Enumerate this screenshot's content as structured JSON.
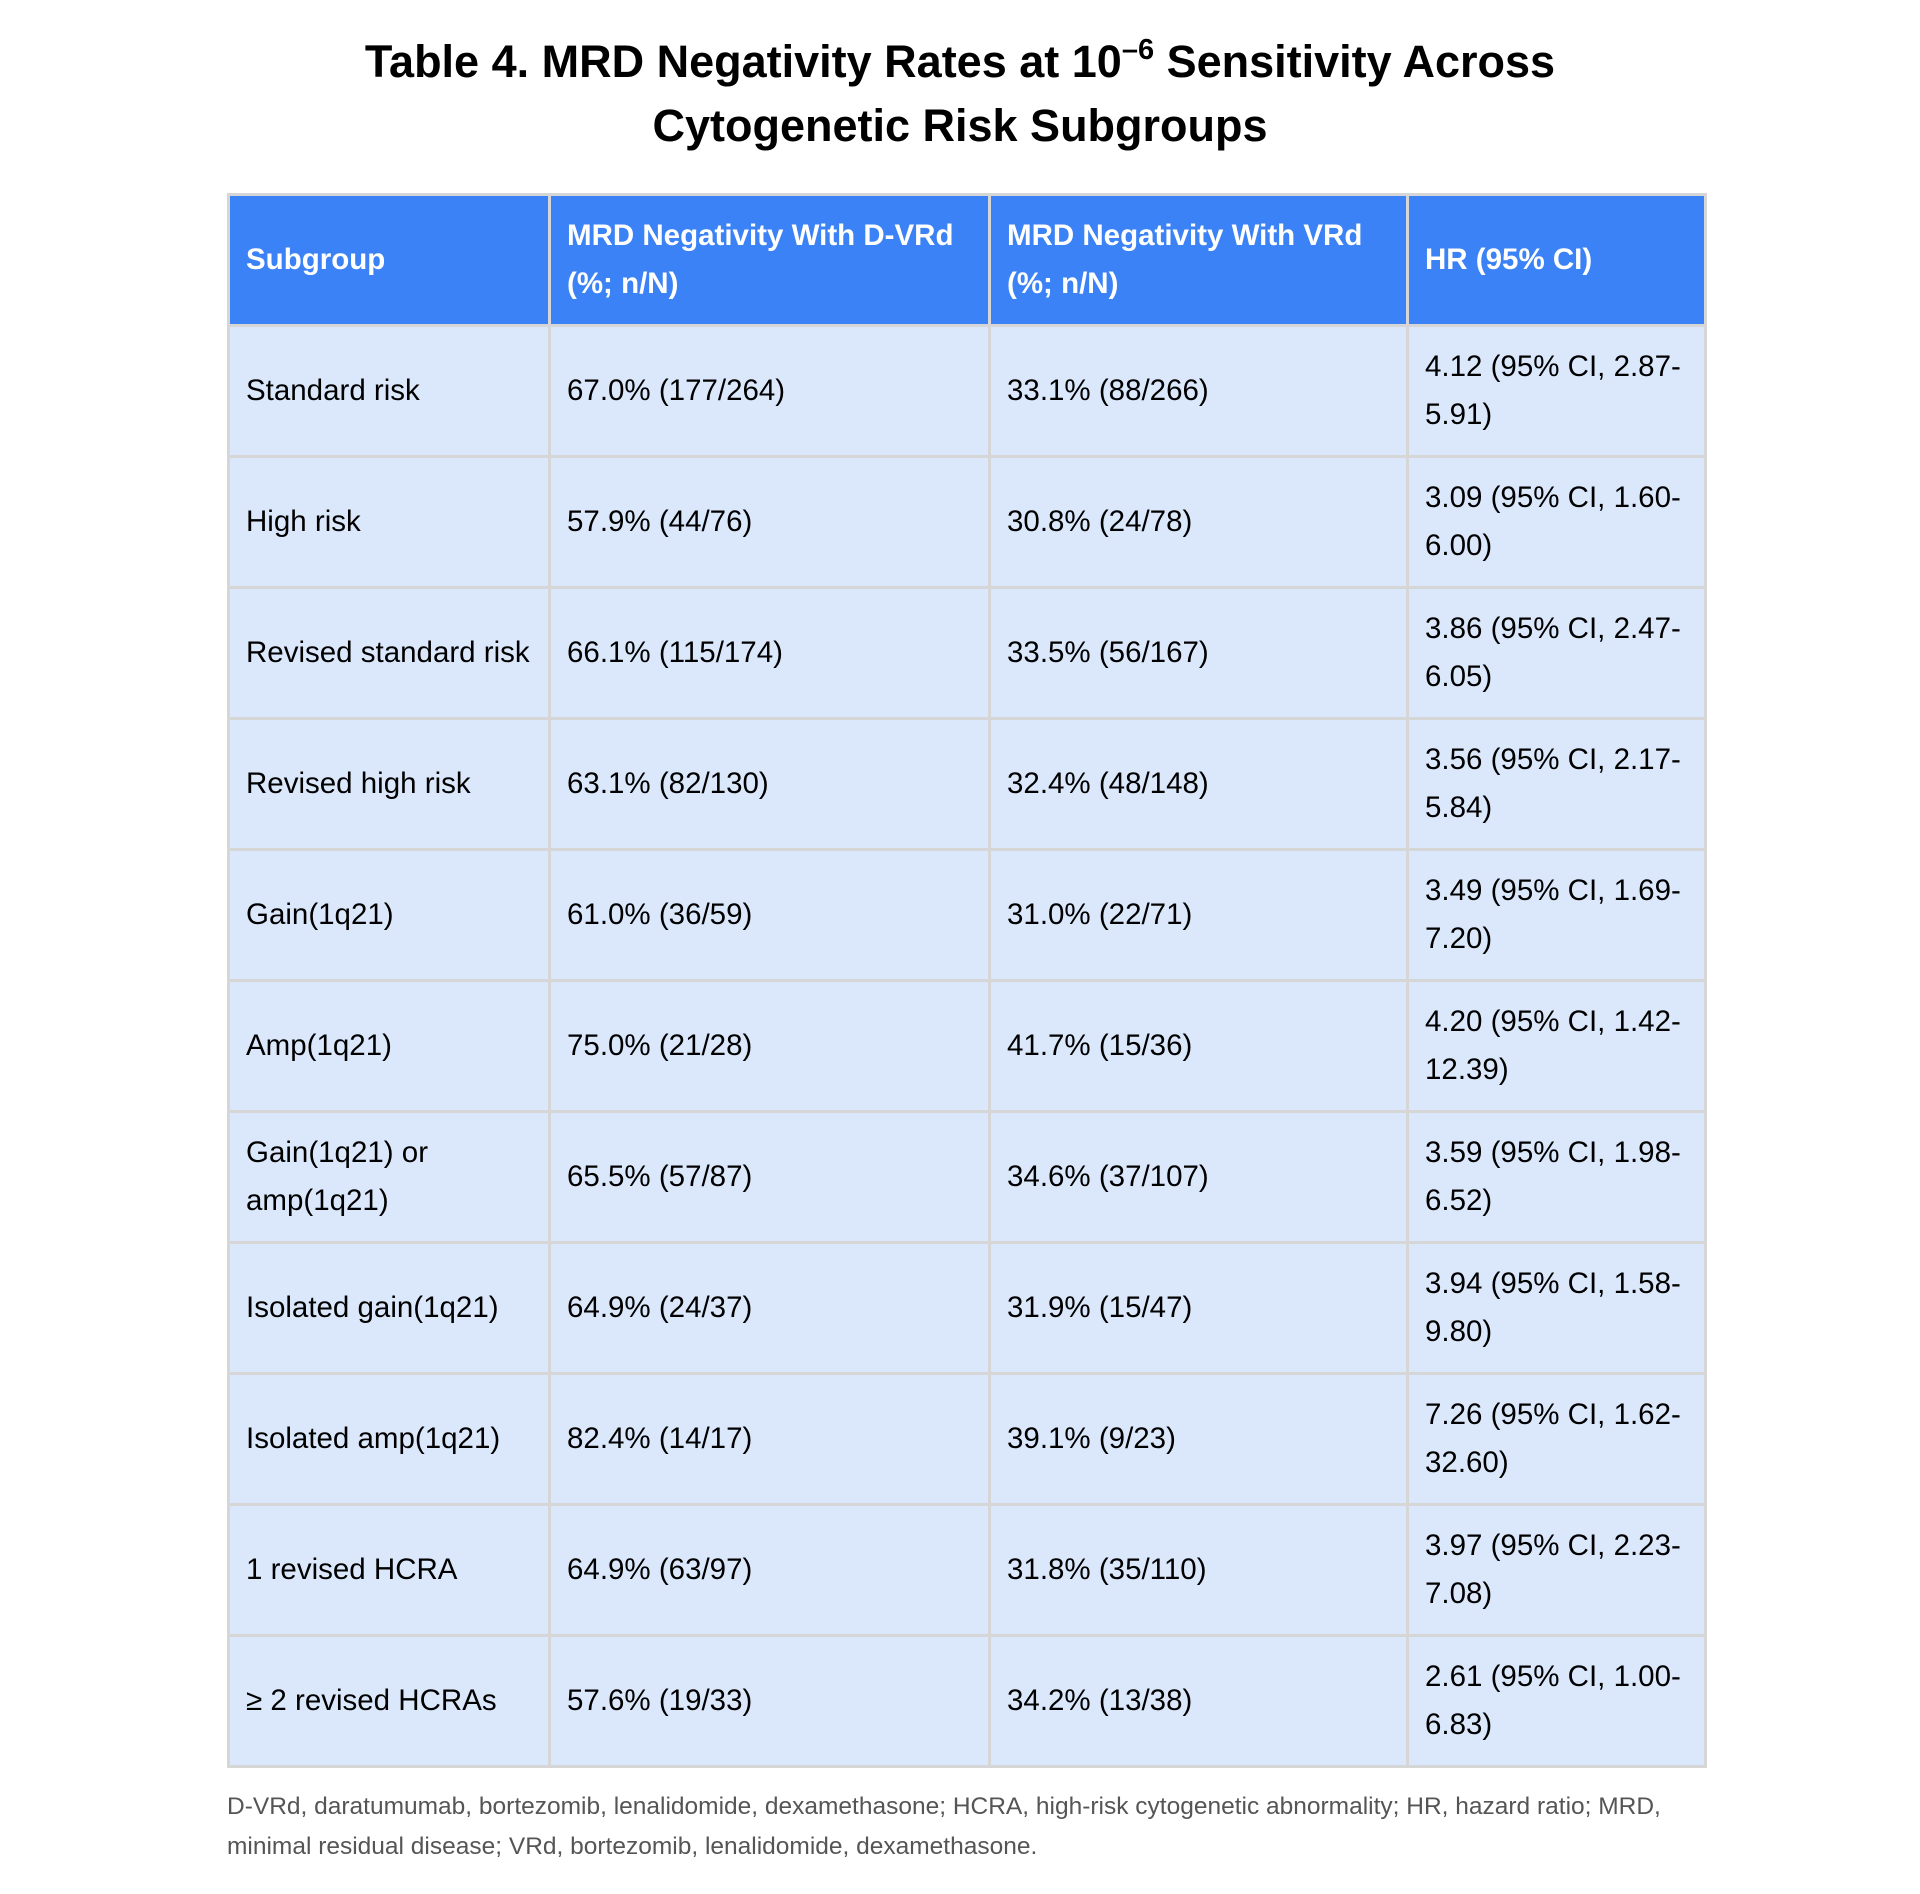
{
  "title": {
    "line1_prefix": "Table 4. MRD Negativity Rates at 10",
    "line1_superscript": "–6",
    "line1_suffix": " Sensitivity Across",
    "line2": "Cytogenetic Risk Subgroups"
  },
  "table": {
    "headers": [
      "Subgroup",
      "MRD Negativity With D-VRd (%; n/N)",
      "MRD Negativity With VRd (%; n/N)",
      "HR (95% CI)"
    ],
    "rows": [
      [
        "Standard risk",
        "67.0% (177/264)",
        "33.1% (88/266)",
        "4.12 (95% CI, 2.87-5.91)"
      ],
      [
        "High risk",
        "57.9% (44/76)",
        "30.8% (24/78)",
        "3.09 (95% CI, 1.60-6.00)"
      ],
      [
        "Revised standard risk",
        "66.1% (115/174)",
        "33.5% (56/167)",
        "3.86 (95% CI, 2.47-6.05)"
      ],
      [
        "Revised high risk",
        "63.1% (82/130)",
        "32.4% (48/148)",
        "3.56 (95% CI, 2.17-5.84)"
      ],
      [
        "Gain(1q21)",
        "61.0% (36/59)",
        "31.0% (22/71)",
        "3.49 (95% CI, 1.69-7.20)"
      ],
      [
        "Amp(1q21)",
        "75.0% (21/28)",
        "41.7% (15/36)",
        "4.20 (95% CI, 1.42-12.39)"
      ],
      [
        "Gain(1q21) or amp(1q21)",
        "65.5% (57/87)",
        "34.6% (37/107)",
        "3.59 (95% CI, 1.98-6.52)"
      ],
      [
        "Isolated gain(1q21)",
        "64.9% (24/37)",
        "31.9% (15/47)",
        "3.94 (95% CI, 1.58-9.80)"
      ],
      [
        "Isolated amp(1q21)",
        "82.4% (14/17)",
        "39.1% (9/23)",
        "7.26 (95% CI, 1.62-32.60)"
      ],
      [
        "1 revised HCRA",
        "64.9% (63/97)",
        "31.8% (35/110)",
        "3.97 (95% CI, 2.23-7.08)"
      ],
      [
        "≥ 2 revised HCRAs",
        "57.6% (19/33)",
        "34.2% (13/38)",
        "2.61 (95% CI, 1.00-6.83)"
      ]
    ]
  },
  "footnote": "D-VRd, daratumumab, bortezomib, lenalidomide, dexamethasone; HCRA, high-risk cytogenetic abnormality; HR, hazard ratio; MRD, minimal residual disease; VRd, bortezomib, lenalidomide, dexamethasone.",
  "colors": {
    "header_bg": "#3b82f6",
    "header_text": "#ffffff",
    "cell_bg": "#dbe8fc",
    "border": "#d6d6d6",
    "footnote_text": "#555555"
  }
}
